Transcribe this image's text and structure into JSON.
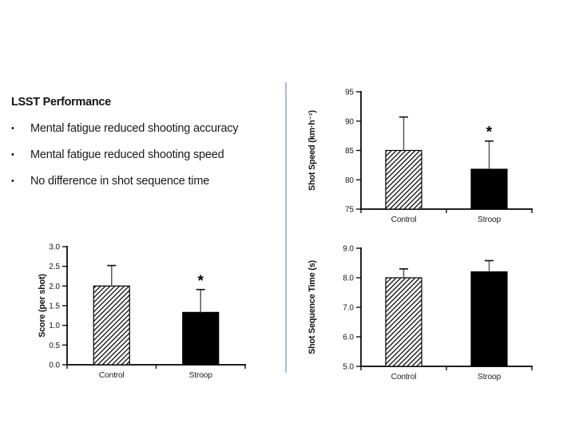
{
  "left_panel": {
    "title": "LSST Performance",
    "bullet_glyph": "•",
    "bullets": [
      "Mental fatigue reduced shooting accuracy",
      "Mental fatigue reduced shooting speed",
      "No difference in shot sequence time"
    ]
  },
  "theme": {
    "background": "#ffffff",
    "text_color": "#1a1a1a",
    "divider_color": "#a7bed9",
    "bar_solid_color": "#000000",
    "hatch_line_color": "#000000",
    "error_stem_color": "#5a5a5a",
    "error_cap_color": "#1a1a1a"
  },
  "chart_data": [
    {
      "type": "bar",
      "ylabel": "Score (per shot)",
      "xlabel": "",
      "categories": [
        "Control",
        "Stroop"
      ],
      "values": [
        2.0,
        1.33
      ],
      "errors_up": [
        0.52,
        0.58
      ],
      "significance": [
        "",
        "*"
      ],
      "bar_styles": [
        "hatched",
        "solid"
      ],
      "ylim": [
        0,
        3
      ],
      "yticks": [
        0,
        0.5,
        1,
        1.5,
        2,
        2.5,
        3
      ],
      "ytick_labels": [
        "0.0",
        "0.5",
        "1.0",
        "1.5",
        "2.0",
        "2.5",
        "3.0"
      ],
      "grid": false,
      "legend": "none"
    },
    {
      "type": "bar",
      "ylabel": "Shot Speed (km·h⁻¹)",
      "xlabel": "",
      "categories": [
        "Control",
        "Stroop"
      ],
      "values": [
        85,
        81.8
      ],
      "errors_up": [
        5.7,
        4.8
      ],
      "significance": [
        "",
        "*"
      ],
      "bar_styles": [
        "hatched",
        "solid"
      ],
      "ylim": [
        75,
        95
      ],
      "yticks": [
        75,
        80,
        85,
        90,
        95
      ],
      "ytick_labels": [
        "75",
        "80",
        "85",
        "90",
        "95"
      ],
      "grid": false,
      "legend": "none"
    },
    {
      "type": "bar",
      "ylabel": "Shot Sequence Time (s)",
      "xlabel": "",
      "categories": [
        "Control",
        "Stroop"
      ],
      "values": [
        8.0,
        8.2
      ],
      "errors_up": [
        0.3,
        0.38
      ],
      "significance": [
        "",
        ""
      ],
      "bar_styles": [
        "hatched",
        "solid"
      ],
      "ylim": [
        5,
        9
      ],
      "yticks": [
        5,
        6,
        7,
        8,
        9
      ],
      "ytick_labels": [
        "5.0",
        "6.0",
        "7.0",
        "8.0",
        "9.0"
      ],
      "grid": false,
      "legend": "none"
    }
  ]
}
